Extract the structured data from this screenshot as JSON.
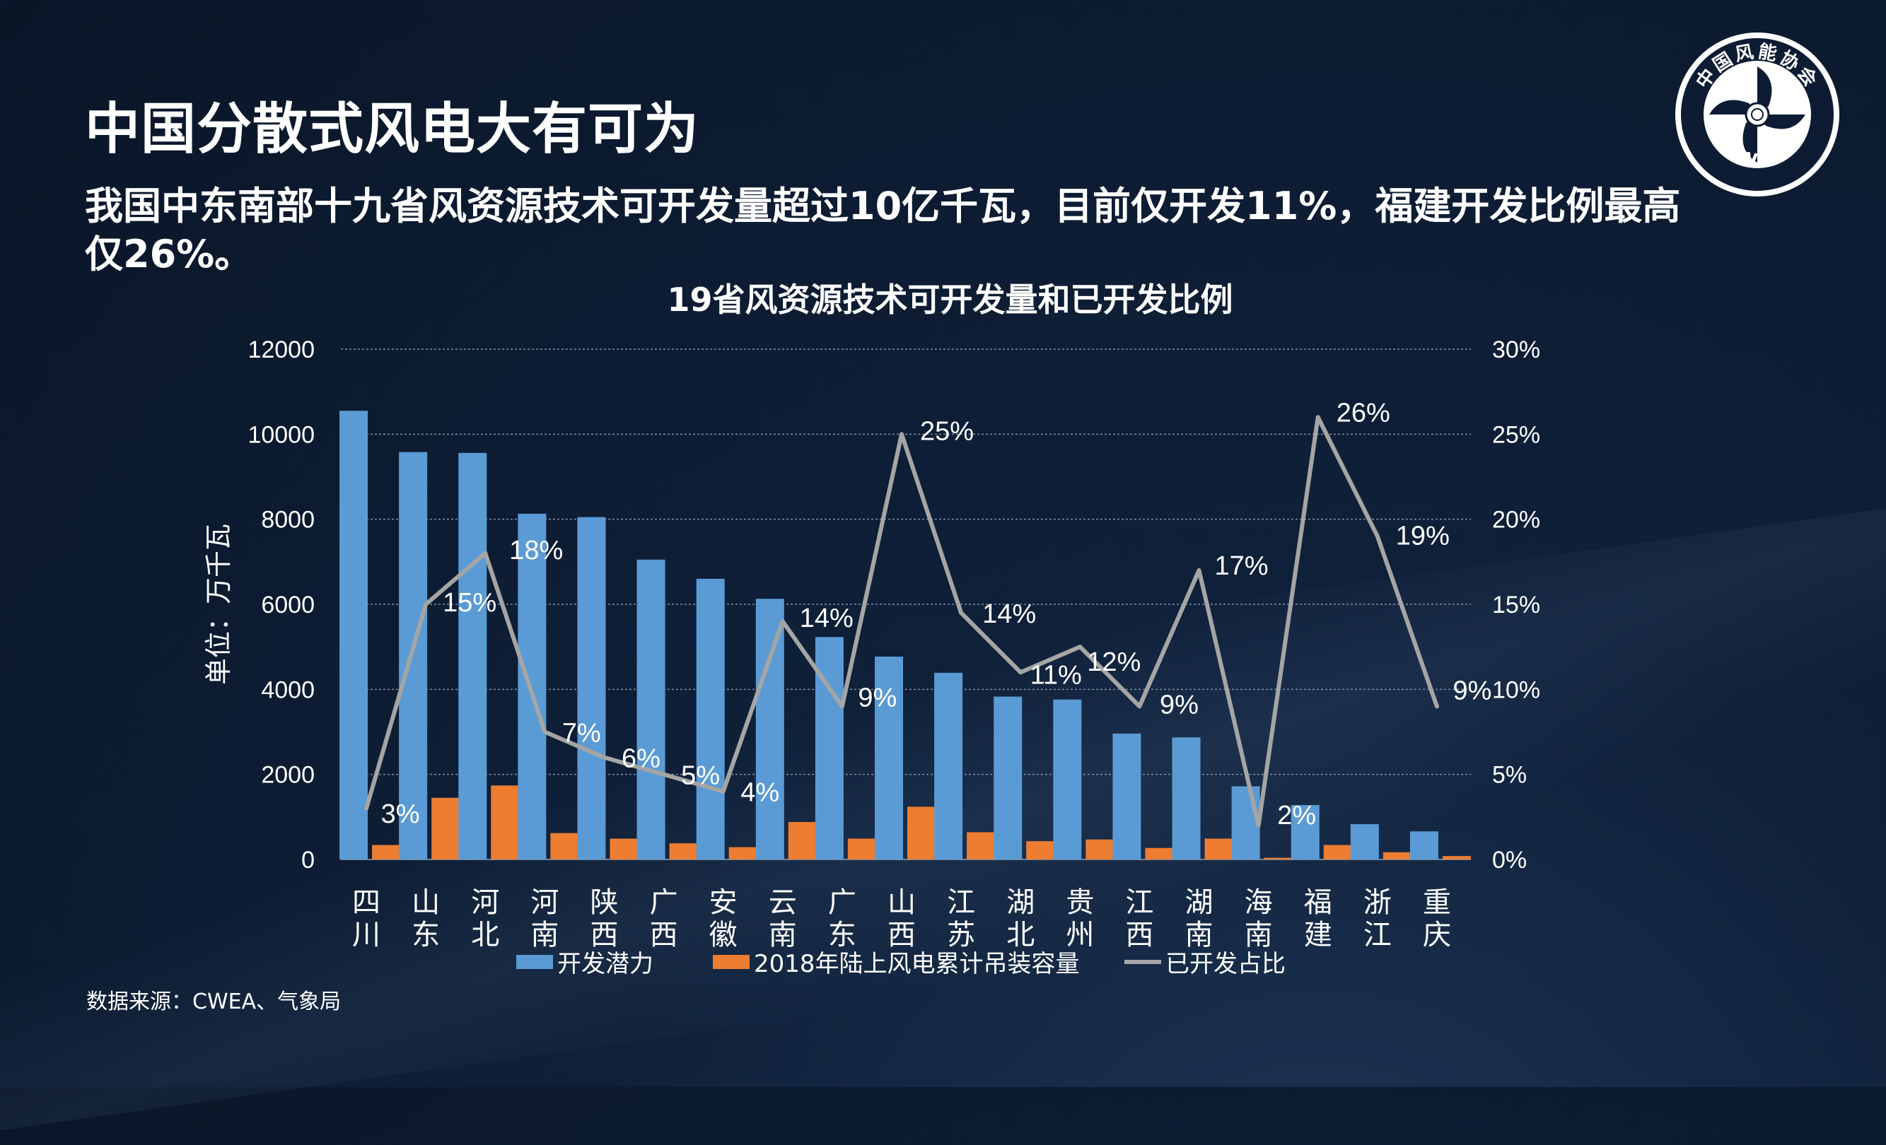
{
  "title": "中国分散式风电大有可为",
  "subtitle": "我国中东南部十九省风资源技术可开发量超过10亿千瓦，目前仅开发11%，福建开发比例最高仅26%。",
  "source": "数据来源：CWEA、气象局",
  "logo": {
    "top_text": "中国风能协会",
    "bottom_text": "CWEA"
  },
  "colors": {
    "potential": "#5b9bd5",
    "installed": "#ed7d31",
    "ratio": "#a5a5a5",
    "grid": "#8a9bb0"
  },
  "chart_data": {
    "type": "bar",
    "title": "19省风资源技术可开发量和已开发比例",
    "ylabel": "单位：万千瓦",
    "ylim": [
      0,
      12000
    ],
    "y2lim": [
      0,
      0.3
    ],
    "y_ticks": [
      "0",
      "2000",
      "4000",
      "6000",
      "8000",
      "10000",
      "12000"
    ],
    "y2_ticks": [
      "0%",
      "5%",
      "10%",
      "15%",
      "20%",
      "25%",
      "30%"
    ],
    "grid": true,
    "legend_position": "bottom",
    "categories": [
      "四川",
      "山东",
      "河北",
      "河南",
      "陕西",
      "广西",
      "安徽",
      "云南",
      "广东",
      "山西",
      "江苏",
      "湖北",
      "贵州",
      "江西",
      "湖南",
      "海南",
      "福建",
      "浙江",
      "重庆"
    ],
    "series": [
      {
        "name": "开发潜力",
        "type": "bar",
        "values": [
          10550,
          9580,
          9560,
          8130,
          8050,
          7050,
          6600,
          6130,
          5230,
          4770,
          4390,
          3830,
          3760,
          2960,
          2870,
          1720,
          1280,
          830,
          660
        ]
      },
      {
        "name": "2018年陆上风电累计吊装容量",
        "type": "bar",
        "values": [
          340,
          1450,
          1740,
          620,
          490,
          380,
          290,
          880,
          490,
          1240,
          640,
          430,
          470,
          270,
          490,
          40,
          340,
          170,
          80
        ]
      },
      {
        "name": "已开发占比",
        "type": "line",
        "axis": "right",
        "values": [
          0.03,
          0.15,
          0.18,
          0.075,
          0.06,
          0.05,
          0.04,
          0.14,
          0.09,
          0.25,
          0.145,
          0.11,
          0.125,
          0.09,
          0.17,
          0.02,
          0.26,
          0.19,
          0.09
        ]
      }
    ],
    "data_labels": [
      "3%",
      "15%",
      "18%",
      "7%",
      "6%",
      "5%",
      "4%",
      "14%",
      "9%",
      "25%",
      "14%",
      "11%",
      "12%",
      "9%",
      "17%",
      "2%",
      "26%",
      "19%",
      "9%"
    ]
  }
}
